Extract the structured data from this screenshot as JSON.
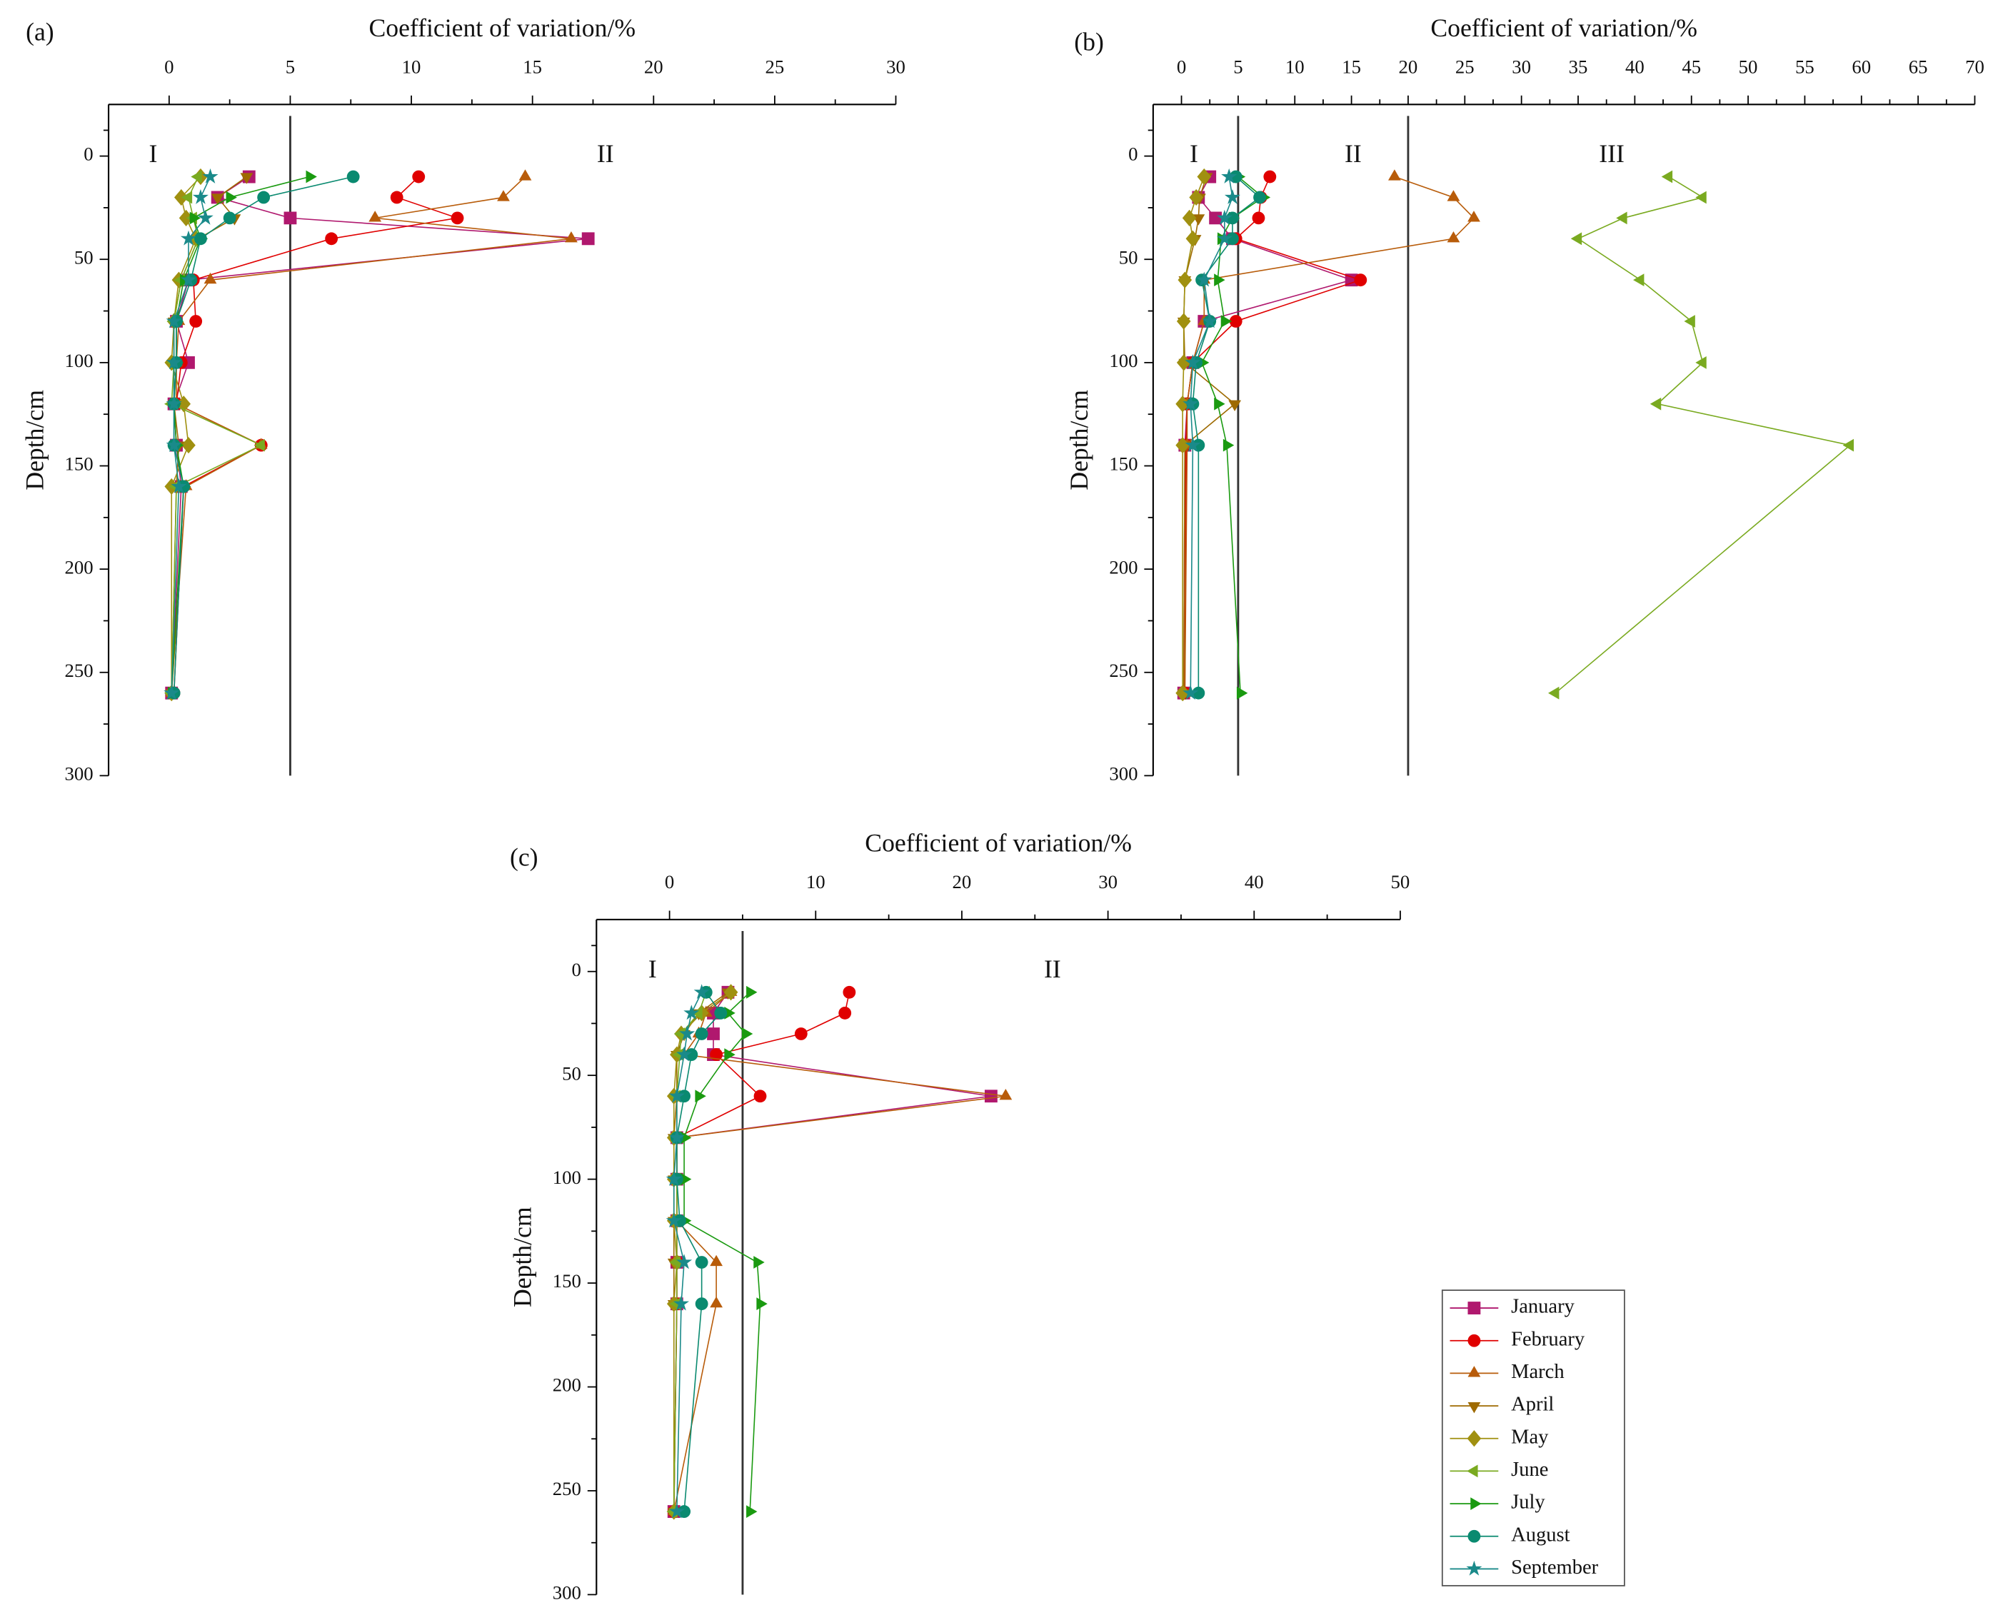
{
  "chart_data": [
    {
      "type": "line",
      "panel_label": "(a)",
      "xlabel": "Coefficient of variation/%",
      "ylabel": "Depth/cm",
      "xlim": [
        -2.5,
        30
      ],
      "xticks": [
        0,
        5,
        10,
        15,
        20,
        25,
        30
      ],
      "ylim": [
        -25,
        300
      ],
      "yticks": [
        0,
        50,
        100,
        150,
        200,
        250,
        300
      ],
      "y_inverted": true,
      "thresholds": [
        5
      ],
      "annotations": [
        "I",
        "II"
      ],
      "y": [
        10,
        20,
        30,
        40,
        60,
        80,
        100,
        120,
        140,
        160,
        260
      ],
      "series": [
        {
          "name": "January",
          "color": "#b0186e",
          "marker": "square",
          "values": [
            3.3,
            2.0,
            5.0,
            17.3,
            0.8,
            0.3,
            0.8,
            0.2,
            0.3,
            0.5,
            0.1
          ]
        },
        {
          "name": "February",
          "color": "#e00000",
          "marker": "circle",
          "values": [
            10.3,
            9.4,
            11.9,
            6.7,
            1.0,
            1.1,
            0.5,
            0.3,
            3.8,
            0.6,
            0.2
          ]
        },
        {
          "name": "March",
          "color": "#b85c0a",
          "marker": "triangle-up",
          "values": [
            14.7,
            13.8,
            8.5,
            16.6,
            1.7,
            0.4,
            0.3,
            0.3,
            3.8,
            0.7,
            0.1
          ]
        },
        {
          "name": "April",
          "color": "#9e6a00",
          "marker": "triangle-down",
          "values": [
            3.2,
            2.0,
            2.7,
            1.2,
            0.5,
            0.2,
            0.2,
            0.2,
            0.4,
            0.3,
            0.1
          ]
        },
        {
          "name": "May",
          "color": "#a09010",
          "marker": "diamond",
          "values": [
            1.3,
            0.5,
            0.7,
            1.1,
            0.4,
            0.2,
            0.1,
            0.6,
            0.8,
            0.1,
            0.1
          ]
        },
        {
          "name": "June",
          "color": "#7aaa20",
          "marker": "triangle-left",
          "values": [
            1.2,
            0.8,
            1.0,
            1.2,
            0.5,
            0.2,
            0.2,
            0.1,
            3.8,
            0.3,
            0.1
          ]
        },
        {
          "name": "July",
          "color": "#1a9a10",
          "marker": "triangle-right",
          "values": [
            5.8,
            2.5,
            1.0,
            1.3,
            0.6,
            0.3,
            0.3,
            0.2,
            0.3,
            0.6,
            0.1
          ]
        },
        {
          "name": "August",
          "color": "#0a8a70",
          "marker": "circle",
          "values": [
            7.6,
            3.9,
            2.5,
            1.3,
            0.9,
            0.3,
            0.3,
            0.2,
            0.2,
            0.6,
            0.2
          ]
        },
        {
          "name": "September",
          "color": "#1a8a8a",
          "marker": "star",
          "values": [
            1.7,
            1.3,
            1.5,
            0.8,
            0.8,
            0.2,
            0.2,
            0.2,
            0.2,
            0.4,
            0.1
          ]
        }
      ]
    },
    {
      "type": "line",
      "panel_label": "(b)",
      "xlabel": "Coefficient of variation/%",
      "ylabel": "Depth/cm",
      "xlim": [
        -2.5,
        70
      ],
      "xticks": [
        0,
        5,
        10,
        15,
        20,
        25,
        30,
        35,
        40,
        45,
        50,
        55,
        60,
        65,
        70
      ],
      "ylim": [
        -25,
        300
      ],
      "yticks": [
        0,
        50,
        100,
        150,
        200,
        250,
        300
      ],
      "y_inverted": true,
      "thresholds": [
        5,
        20
      ],
      "annotations": [
        "I",
        "II",
        "III"
      ],
      "y": [
        10,
        20,
        30,
        40,
        60,
        80,
        100,
        120,
        140,
        260
      ],
      "series": [
        {
          "name": "January",
          "color": "#b0186e",
          "marker": "square",
          "values": [
            2.5,
            1.5,
            3.0,
            4.5,
            15,
            2.0,
            1.0,
            0.5,
            0.3,
            0.2
          ]
        },
        {
          "name": "February",
          "color": "#e00000",
          "marker": "circle",
          "values": [
            7.8,
            7.0,
            6.8,
            4.8,
            15.8,
            4.8,
            1.0,
            0.5,
            0.4,
            0.3
          ]
        },
        {
          "name": "March",
          "color": "#b85c0a",
          "marker": "triangle-up",
          "values": [
            18.8,
            24,
            25.8,
            24,
            2,
            2,
            1,
            0.5,
            0.5,
            0.3
          ]
        },
        {
          "name": "April",
          "color": "#9e6a00",
          "marker": "triangle-down",
          "values": [
            2.2,
            1.6,
            1.5,
            1.2,
            0.3,
            0.2,
            0.3,
            4.7,
            0.3,
            0.2
          ]
        },
        {
          "name": "May",
          "color": "#a09010",
          "marker": "diamond",
          "values": [
            2.0,
            1.3,
            0.7,
            1.0,
            0.3,
            0.2,
            0.2,
            0.1,
            0.1,
            0.1
          ]
        },
        {
          "name": "June",
          "color": "#7aaa20",
          "marker": "triangle-left",
          "values": [
            43,
            46,
            39,
            35,
            40.5,
            45,
            46,
            42,
            59,
            33
          ]
        },
        {
          "name": "July",
          "color": "#1a9a10",
          "marker": "triangle-right",
          "values": [
            5.0,
            7.2,
            4.5,
            3.5,
            3.2,
            3.8,
            1.8,
            3.2,
            4.0,
            5.2
          ]
        },
        {
          "name": "August",
          "color": "#0a8a70",
          "marker": "circle",
          "values": [
            4.8,
            6.9,
            4.5,
            4.5,
            1.8,
            2.5,
            1.3,
            1.0,
            1.5,
            1.5
          ]
        },
        {
          "name": "September",
          "color": "#1a8a8a",
          "marker": "star",
          "values": [
            4.2,
            4.5,
            3.8,
            3.8,
            2.0,
            2.5,
            1.0,
            0.8,
            1.0,
            0.8
          ]
        }
      ]
    },
    {
      "type": "line",
      "panel_label": "(c)",
      "xlabel": "Coefficient of variation/%",
      "ylabel": "Depth/cm",
      "xlim": [
        -5,
        50
      ],
      "xticks": [
        0,
        10,
        20,
        30,
        40,
        50
      ],
      "ylim": [
        -25,
        300
      ],
      "yticks": [
        0,
        50,
        100,
        150,
        200,
        250,
        300
      ],
      "y_inverted": true,
      "thresholds": [
        5
      ],
      "annotations": [
        "I",
        "II"
      ],
      "y": [
        10,
        20,
        30,
        40,
        60,
        80,
        100,
        120,
        140,
        160,
        260
      ],
      "series": [
        {
          "name": "January",
          "color": "#b0186e",
          "marker": "square",
          "values": [
            4.0,
            3.0,
            3.0,
            3.0,
            22,
            0.5,
            0.5,
            0.5,
            0.5,
            0.5,
            0.3
          ]
        },
        {
          "name": "February",
          "color": "#e00000",
          "marker": "circle",
          "values": [
            12.3,
            12,
            9,
            3.2,
            6.2,
            0.5,
            0.5,
            0.5,
            0.5,
            0.5,
            0.3
          ]
        },
        {
          "name": "March",
          "color": "#b85c0a",
          "marker": "triangle-up",
          "values": [
            4.2,
            2.5,
            2,
            1.0,
            23,
            0.5,
            0.5,
            0.5,
            3.2,
            3.2,
            0.3
          ]
        },
        {
          "name": "April",
          "color": "#9e6a00",
          "marker": "triangle-down",
          "values": [
            4,
            2,
            1,
            0.5,
            0.5,
            0.3,
            0.3,
            0.3,
            0.3,
            0.3,
            0.3
          ]
        },
        {
          "name": "May",
          "color": "#a09010",
          "marker": "diamond",
          "values": [
            4.2,
            2.2,
            0.8,
            0.5,
            0.3,
            0.3,
            0.3,
            0.3,
            0.5,
            0.3,
            0.3
          ]
        },
        {
          "name": "June",
          "color": "#7aaa20",
          "marker": "triangle-left",
          "values": [
            2.5,
            2.0,
            0.8,
            0.7,
            0.5,
            0.5,
            0.5,
            0.5,
            0.5,
            0.5,
            0.3
          ]
        },
        {
          "name": "July",
          "color": "#1a9a10",
          "marker": "triangle-right",
          "values": [
            5.5,
            4.0,
            5.2,
            4.0,
            2.0,
            1.0,
            1.0,
            1.0,
            6.0,
            6.2,
            5.5
          ]
        },
        {
          "name": "August",
          "color": "#0a8a70",
          "marker": "circle",
          "values": [
            2.5,
            3.5,
            2.2,
            1.5,
            1.0,
            0.5,
            0.5,
            0.7,
            2.2,
            2.2,
            1.0
          ]
        },
        {
          "name": "September",
          "color": "#1a8a8a",
          "marker": "star",
          "values": [
            2.2,
            1.5,
            1.2,
            1.0,
            0.5,
            0.5,
            0.3,
            0.3,
            1.0,
            0.8,
            0.5
          ]
        }
      ]
    }
  ]
}
